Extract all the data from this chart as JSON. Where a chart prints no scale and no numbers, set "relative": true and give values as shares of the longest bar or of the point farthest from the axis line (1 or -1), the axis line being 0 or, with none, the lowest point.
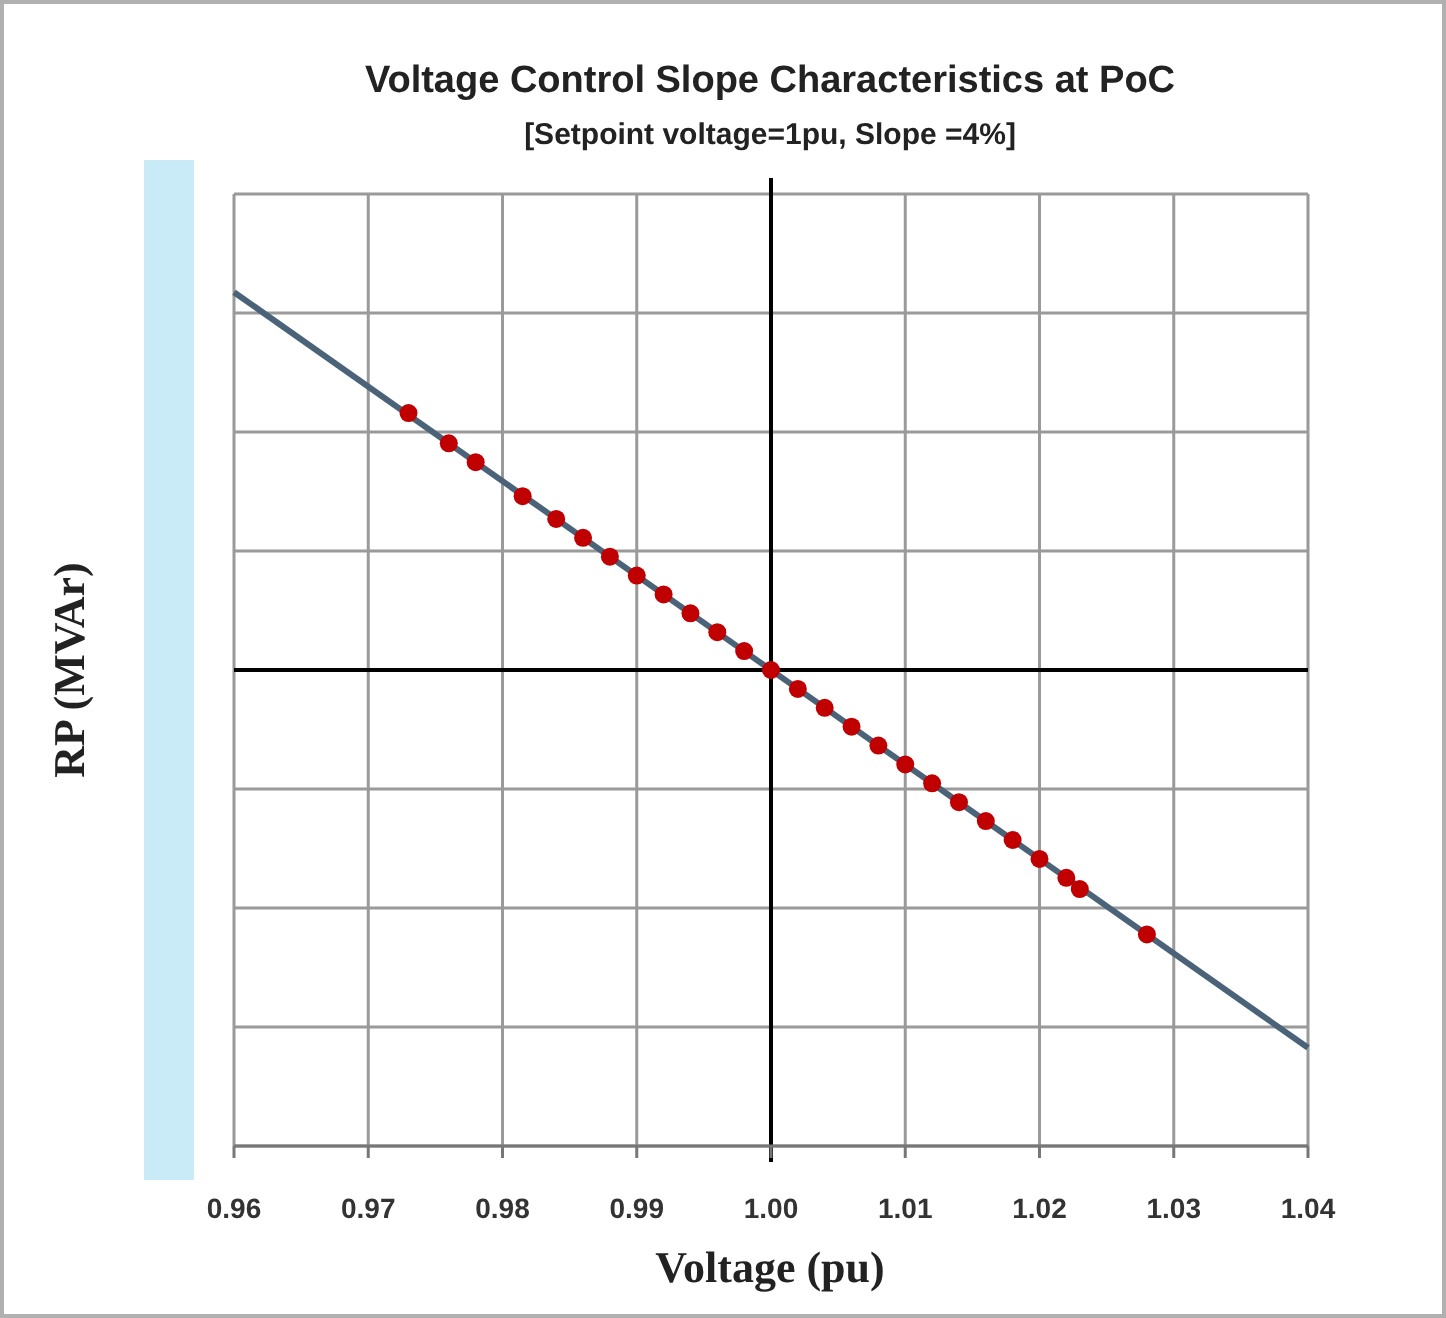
{
  "chart_data": {
    "type": "line",
    "title": "Voltage Control  Slope Characteristics at PoC",
    "subtitle": "[Setpoint voltage=1pu, Slope =4%]",
    "xlabel": "Voltage (pu)",
    "ylabel": "RP (MVAr)",
    "relative": true,
    "grid": true,
    "xlim": [
      0.96,
      1.04
    ],
    "xticks": [
      0.96,
      0.97,
      0.98,
      0.99,
      {
        "value": 1,
        "label": "1.00"
      },
      1.01,
      1.02,
      1.03,
      1.04
    ],
    "ref_lines": [
      {
        "axis": "x",
        "value": 1,
        "color": "#000000"
      }
    ],
    "series": [
      {
        "color": "#4a6378",
        "marker": "none",
        "line_style": "solid",
        "x": [
          0.96,
          1.04
        ],
        "values": [
          1,
          -1
        ]
      },
      {
        "type": "scatter",
        "color": "#c00000",
        "marker": "circle",
        "x": [
          0.973,
          0.976,
          0.978,
          0.9815,
          0.984,
          0.986,
          0.988,
          0.99,
          0.992,
          0.994,
          0.996,
          0.998,
          1.0,
          1.002,
          1.004,
          1.006,
          1.008,
          1.01,
          1.012,
          1.014,
          1.016,
          1.018,
          1.02,
          1.022,
          1.023,
          1.028
        ],
        "values": [
          0.68,
          0.6,
          0.55,
          0.46,
          0.4,
          0.35,
          0.3,
          0.25,
          0.2,
          0.15,
          0.1,
          0.05,
          0,
          -0.05,
          -0.1,
          -0.15,
          -0.2,
          -0.25,
          -0.3,
          -0.35,
          -0.4,
          -0.45,
          -0.5,
          -0.55,
          -0.58,
          -0.7
        ]
      }
    ]
  }
}
